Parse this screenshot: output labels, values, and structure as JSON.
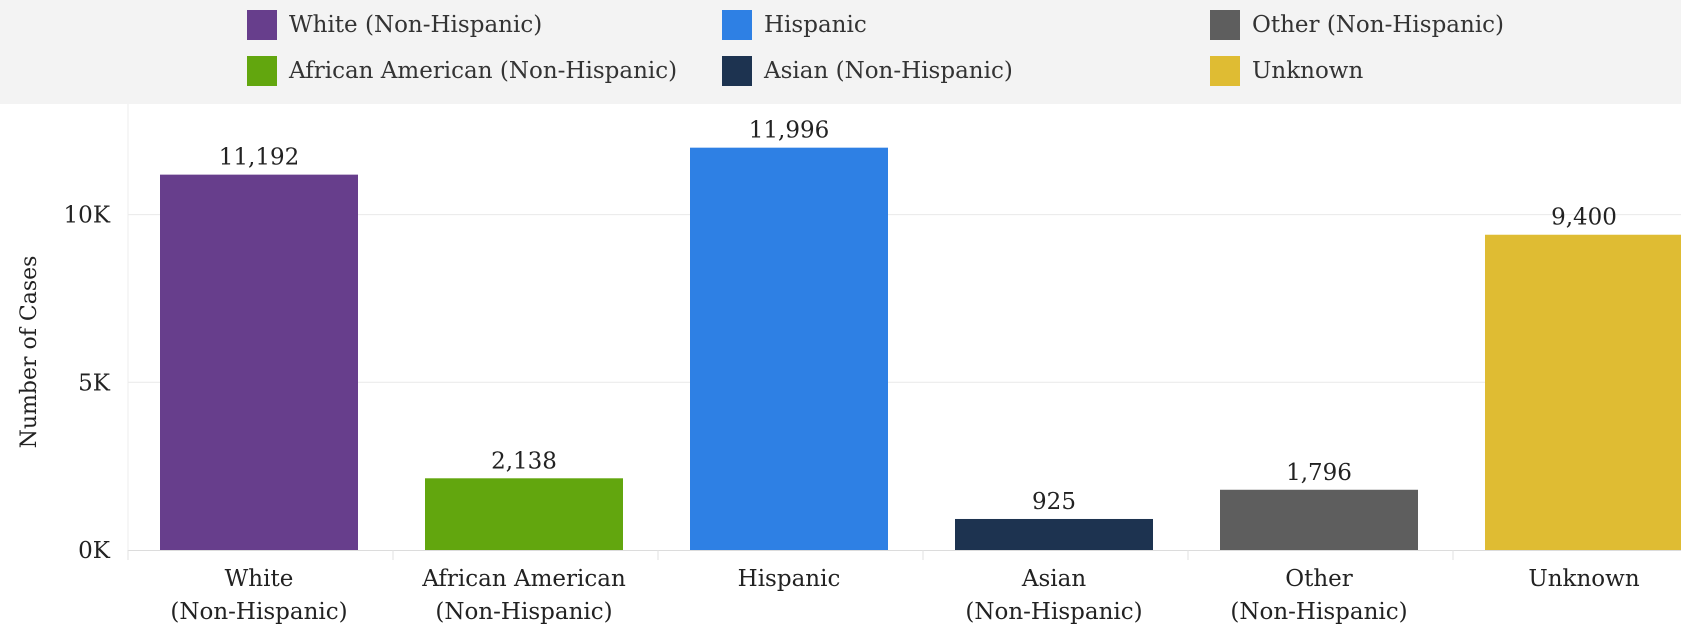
{
  "chart_data": {
    "type": "bar",
    "ylabel": "Number of Cases",
    "ylim": [
      0,
      13000
    ],
    "yticks": [
      {
        "value": 0,
        "label": "0K"
      },
      {
        "value": 5000,
        "label": "5K"
      },
      {
        "value": 10000,
        "label": "10K"
      }
    ],
    "grid": true,
    "legend_position": "top",
    "categories": [
      {
        "tick": [
          "White",
          "(Non-Hispanic)"
        ],
        "value": 11192,
        "value_label": "11,192",
        "color": "#673e8c"
      },
      {
        "tick": [
          "African American",
          "(Non-Hispanic)"
        ],
        "value": 2138,
        "value_label": "2,138",
        "color": "#62a60e"
      },
      {
        "tick": [
          "Hispanic"
        ],
        "value": 11996,
        "value_label": "11,996",
        "color": "#2e80e4"
      },
      {
        "tick": [
          "Asian",
          "(Non-Hispanic)"
        ],
        "value": 925,
        "value_label": "925",
        "color": "#1d3350"
      },
      {
        "tick": [
          "Other",
          "(Non-Hispanic)"
        ],
        "value": 1796,
        "value_label": "1,796",
        "color": "#5e5e5e"
      },
      {
        "tick": [
          "Unknown"
        ],
        "value": 9400,
        "value_label": "9,400",
        "color": "#dfbc33"
      }
    ]
  },
  "legend": [
    {
      "label": "White (Non-Hispanic)",
      "color": "#673e8c"
    },
    {
      "label": "Hispanic",
      "color": "#2e80e4"
    },
    {
      "label": "Other (Non-Hispanic)",
      "color": "#5e5e5e"
    },
    {
      "label": "African American (Non-Hispanic)",
      "color": "#62a60e"
    },
    {
      "label": "Asian (Non-Hispanic)",
      "color": "#1d3350"
    },
    {
      "label": "Unknown",
      "color": "#dfbc33"
    }
  ]
}
